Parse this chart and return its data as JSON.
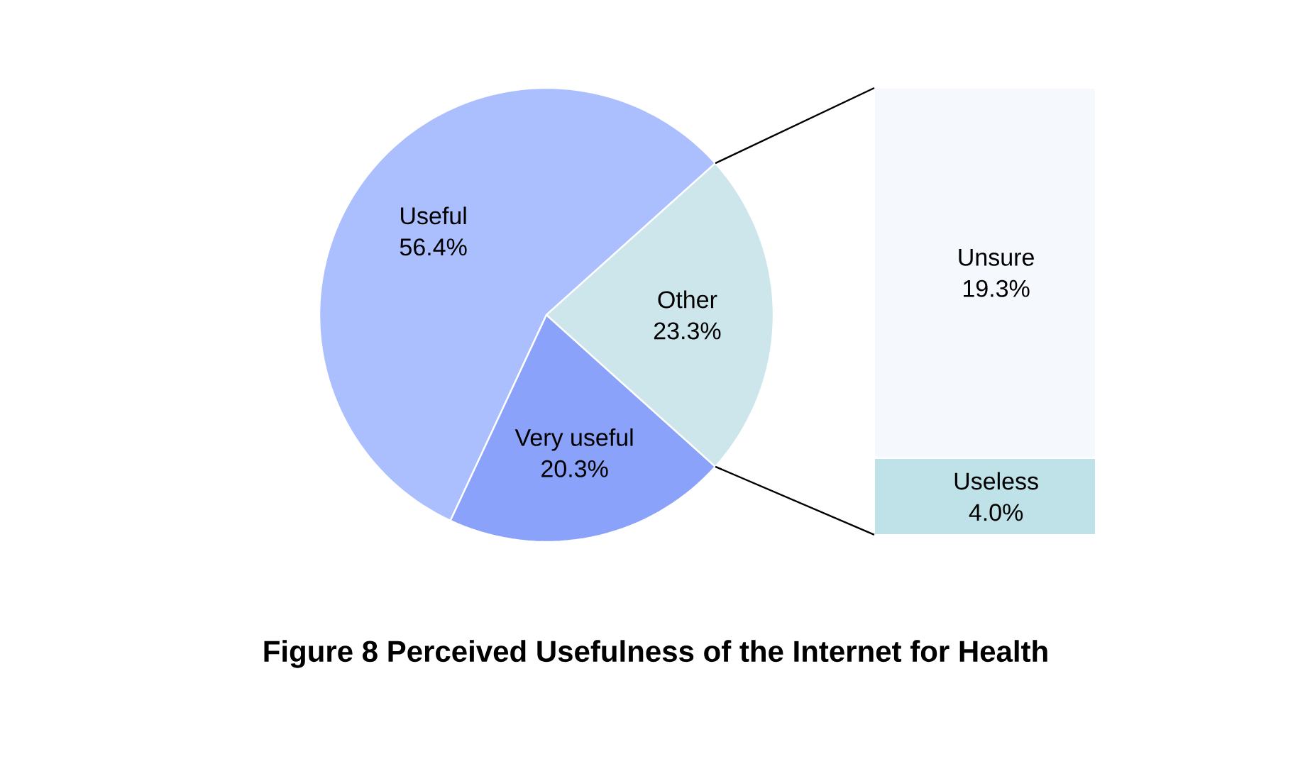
{
  "chart_data": [
    {
      "type": "pie",
      "title": "Figure 8 Perceived Usefulness of the Internet for Health",
      "categories": [
        "Useful",
        "Very useful",
        "Other"
      ],
      "values": [
        56.4,
        20.3,
        23.3
      ],
      "value_labels": [
        "56.4%",
        "20.3%",
        "23.3%"
      ],
      "colors": [
        "#abbfff",
        "#8aa2fa",
        "#cde6ec"
      ]
    },
    {
      "type": "bar",
      "stacked": true,
      "categories": [
        null
      ],
      "series": [
        {
          "name": "Useless",
          "color": "#bfe1e8",
          "values": [
            4.0
          ],
          "value_labels": [
            "4.0%"
          ]
        },
        {
          "name": "Unsure",
          "color": "#f5f8fc",
          "values": [
            19.3
          ],
          "value_labels": [
            "19.3%"
          ]
        }
      ]
    }
  ]
}
